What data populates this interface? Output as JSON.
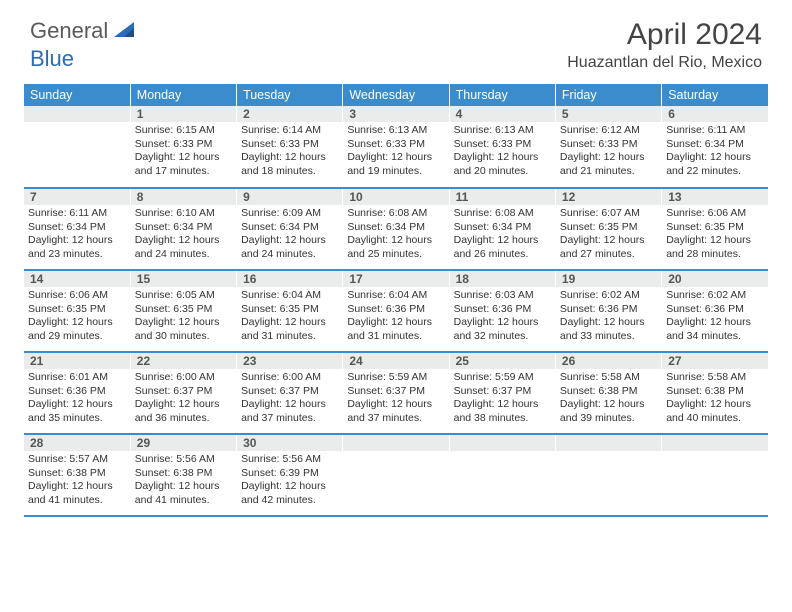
{
  "brand": {
    "part1": "General",
    "part2": "Blue"
  },
  "title": "April 2024",
  "location": "Huazantlan del Rio, Mexico",
  "colors": {
    "header_bg": "#3b8ccd",
    "rule": "#3b8ccd",
    "daybar": "#e9eceb"
  },
  "weekdays": [
    "Sunday",
    "Monday",
    "Tuesday",
    "Wednesday",
    "Thursday",
    "Friday",
    "Saturday"
  ],
  "weeks": [
    [
      null,
      {
        "n": "1",
        "sunrise": "Sunrise: 6:15 AM",
        "sunset": "Sunset: 6:33 PM",
        "d1": "Daylight: 12 hours",
        "d2": "and 17 minutes."
      },
      {
        "n": "2",
        "sunrise": "Sunrise: 6:14 AM",
        "sunset": "Sunset: 6:33 PM",
        "d1": "Daylight: 12 hours",
        "d2": "and 18 minutes."
      },
      {
        "n": "3",
        "sunrise": "Sunrise: 6:13 AM",
        "sunset": "Sunset: 6:33 PM",
        "d1": "Daylight: 12 hours",
        "d2": "and 19 minutes."
      },
      {
        "n": "4",
        "sunrise": "Sunrise: 6:13 AM",
        "sunset": "Sunset: 6:33 PM",
        "d1": "Daylight: 12 hours",
        "d2": "and 20 minutes."
      },
      {
        "n": "5",
        "sunrise": "Sunrise: 6:12 AM",
        "sunset": "Sunset: 6:33 PM",
        "d1": "Daylight: 12 hours",
        "d2": "and 21 minutes."
      },
      {
        "n": "6",
        "sunrise": "Sunrise: 6:11 AM",
        "sunset": "Sunset: 6:34 PM",
        "d1": "Daylight: 12 hours",
        "d2": "and 22 minutes."
      }
    ],
    [
      {
        "n": "7",
        "sunrise": "Sunrise: 6:11 AM",
        "sunset": "Sunset: 6:34 PM",
        "d1": "Daylight: 12 hours",
        "d2": "and 23 minutes."
      },
      {
        "n": "8",
        "sunrise": "Sunrise: 6:10 AM",
        "sunset": "Sunset: 6:34 PM",
        "d1": "Daylight: 12 hours",
        "d2": "and 24 minutes."
      },
      {
        "n": "9",
        "sunrise": "Sunrise: 6:09 AM",
        "sunset": "Sunset: 6:34 PM",
        "d1": "Daylight: 12 hours",
        "d2": "and 24 minutes."
      },
      {
        "n": "10",
        "sunrise": "Sunrise: 6:08 AM",
        "sunset": "Sunset: 6:34 PM",
        "d1": "Daylight: 12 hours",
        "d2": "and 25 minutes."
      },
      {
        "n": "11",
        "sunrise": "Sunrise: 6:08 AM",
        "sunset": "Sunset: 6:34 PM",
        "d1": "Daylight: 12 hours",
        "d2": "and 26 minutes."
      },
      {
        "n": "12",
        "sunrise": "Sunrise: 6:07 AM",
        "sunset": "Sunset: 6:35 PM",
        "d1": "Daylight: 12 hours",
        "d2": "and 27 minutes."
      },
      {
        "n": "13",
        "sunrise": "Sunrise: 6:06 AM",
        "sunset": "Sunset: 6:35 PM",
        "d1": "Daylight: 12 hours",
        "d2": "and 28 minutes."
      }
    ],
    [
      {
        "n": "14",
        "sunrise": "Sunrise: 6:06 AM",
        "sunset": "Sunset: 6:35 PM",
        "d1": "Daylight: 12 hours",
        "d2": "and 29 minutes."
      },
      {
        "n": "15",
        "sunrise": "Sunrise: 6:05 AM",
        "sunset": "Sunset: 6:35 PM",
        "d1": "Daylight: 12 hours",
        "d2": "and 30 minutes."
      },
      {
        "n": "16",
        "sunrise": "Sunrise: 6:04 AM",
        "sunset": "Sunset: 6:35 PM",
        "d1": "Daylight: 12 hours",
        "d2": "and 31 minutes."
      },
      {
        "n": "17",
        "sunrise": "Sunrise: 6:04 AM",
        "sunset": "Sunset: 6:36 PM",
        "d1": "Daylight: 12 hours",
        "d2": "and 31 minutes."
      },
      {
        "n": "18",
        "sunrise": "Sunrise: 6:03 AM",
        "sunset": "Sunset: 6:36 PM",
        "d1": "Daylight: 12 hours",
        "d2": "and 32 minutes."
      },
      {
        "n": "19",
        "sunrise": "Sunrise: 6:02 AM",
        "sunset": "Sunset: 6:36 PM",
        "d1": "Daylight: 12 hours",
        "d2": "and 33 minutes."
      },
      {
        "n": "20",
        "sunrise": "Sunrise: 6:02 AM",
        "sunset": "Sunset: 6:36 PM",
        "d1": "Daylight: 12 hours",
        "d2": "and 34 minutes."
      }
    ],
    [
      {
        "n": "21",
        "sunrise": "Sunrise: 6:01 AM",
        "sunset": "Sunset: 6:36 PM",
        "d1": "Daylight: 12 hours",
        "d2": "and 35 minutes."
      },
      {
        "n": "22",
        "sunrise": "Sunrise: 6:00 AM",
        "sunset": "Sunset: 6:37 PM",
        "d1": "Daylight: 12 hours",
        "d2": "and 36 minutes."
      },
      {
        "n": "23",
        "sunrise": "Sunrise: 6:00 AM",
        "sunset": "Sunset: 6:37 PM",
        "d1": "Daylight: 12 hours",
        "d2": "and 37 minutes."
      },
      {
        "n": "24",
        "sunrise": "Sunrise: 5:59 AM",
        "sunset": "Sunset: 6:37 PM",
        "d1": "Daylight: 12 hours",
        "d2": "and 37 minutes."
      },
      {
        "n": "25",
        "sunrise": "Sunrise: 5:59 AM",
        "sunset": "Sunset: 6:37 PM",
        "d1": "Daylight: 12 hours",
        "d2": "and 38 minutes."
      },
      {
        "n": "26",
        "sunrise": "Sunrise: 5:58 AM",
        "sunset": "Sunset: 6:38 PM",
        "d1": "Daylight: 12 hours",
        "d2": "and 39 minutes."
      },
      {
        "n": "27",
        "sunrise": "Sunrise: 5:58 AM",
        "sunset": "Sunset: 6:38 PM",
        "d1": "Daylight: 12 hours",
        "d2": "and 40 minutes."
      }
    ],
    [
      {
        "n": "28",
        "sunrise": "Sunrise: 5:57 AM",
        "sunset": "Sunset: 6:38 PM",
        "d1": "Daylight: 12 hours",
        "d2": "and 41 minutes."
      },
      {
        "n": "29",
        "sunrise": "Sunrise: 5:56 AM",
        "sunset": "Sunset: 6:38 PM",
        "d1": "Daylight: 12 hours",
        "d2": "and 41 minutes."
      },
      {
        "n": "30",
        "sunrise": "Sunrise: 5:56 AM",
        "sunset": "Sunset: 6:39 PM",
        "d1": "Daylight: 12 hours",
        "d2": "and 42 minutes."
      },
      null,
      null,
      null,
      null
    ]
  ]
}
